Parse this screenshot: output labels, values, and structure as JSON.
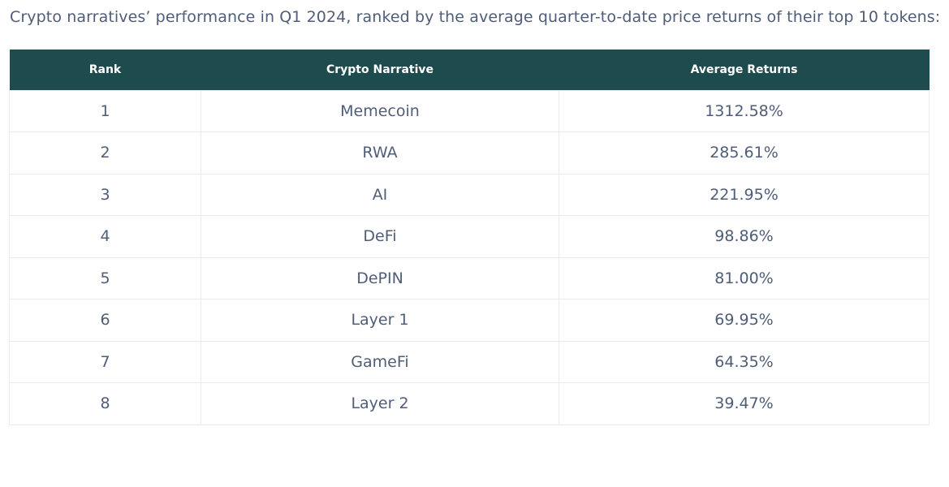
{
  "caption": "Crypto narratives’ performance in Q1 2024, ranked by the average quarter-to-date price returns of their top 10 tokens:",
  "colors": {
    "header_bg": "#1e4c4e",
    "header_text": "#ffffff",
    "body_text": "#4f5d78",
    "border": "#e9ecef"
  },
  "chart_data": {
    "type": "table",
    "title": "Crypto narratives’ performance in Q1 2024, ranked by the average quarter-to-date price returns of their top 10 tokens:",
    "columns": [
      "Rank",
      "Crypto Narrative",
      "Average Returns"
    ],
    "rows": [
      [
        "1",
        "Memecoin",
        "1312.58%"
      ],
      [
        "2",
        "RWA",
        "285.61%"
      ],
      [
        "3",
        "AI",
        "221.95%"
      ],
      [
        "4",
        "DeFi",
        "98.86%"
      ],
      [
        "5",
        "DePIN",
        "81.00%"
      ],
      [
        "6",
        "Layer 1",
        "69.95%"
      ],
      [
        "7",
        "GameFi",
        "64.35%"
      ],
      [
        "8",
        "Layer 2",
        "39.47%"
      ]
    ]
  }
}
